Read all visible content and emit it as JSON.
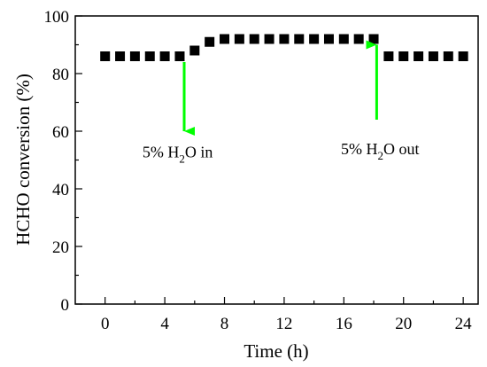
{
  "chart_data": {
    "type": "scatter",
    "xlabel": "Time (h)",
    "ylabel": "HCHO conversion (%)",
    "xlim": [
      -2,
      25
    ],
    "ylim": [
      0,
      100
    ],
    "xticks": [
      "0",
      "4",
      "8",
      "12",
      "16",
      "20",
      "24"
    ],
    "yticks": [
      "0",
      "20",
      "40",
      "60",
      "80",
      "100"
    ],
    "grid": false,
    "legend": "none",
    "marker": "square",
    "marker_color": "#000000",
    "series": [
      {
        "x": [
          0,
          1,
          2,
          3,
          4,
          5,
          6,
          7,
          8,
          9,
          10,
          11,
          12,
          13,
          14,
          15,
          16,
          17,
          18,
          19,
          20,
          21,
          22,
          23,
          24
        ],
        "y": [
          86,
          86,
          86,
          86,
          86,
          86,
          88,
          91,
          92,
          92,
          92,
          92,
          92,
          92,
          92,
          92,
          92,
          92,
          92,
          86,
          86,
          86,
          86,
          86,
          86
        ]
      }
    ],
    "annotations": [
      {
        "text_pre": "5% H",
        "text_sub": "2",
        "text_post": "O in",
        "arrow_x": 5.3,
        "arrow_from": 84,
        "arrow_to": 60,
        "direction": "down",
        "label_x": 2.5,
        "label_y": 51,
        "color": "#00ff00"
      },
      {
        "text_pre": "5% H",
        "text_sub": "2",
        "text_post": "O out",
        "arrow_x": 18.2,
        "arrow_from": 64,
        "arrow_to": 90,
        "direction": "up",
        "label_x": 15.8,
        "label_y": 52,
        "color": "#00ff00"
      }
    ]
  }
}
